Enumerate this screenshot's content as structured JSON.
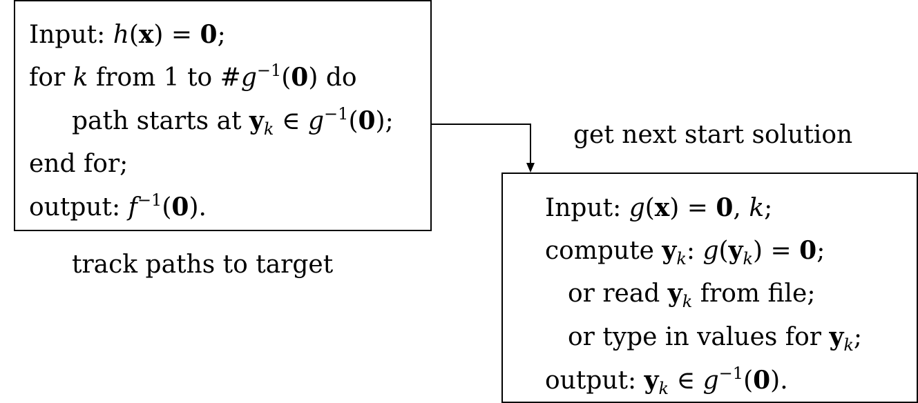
{
  "tracker": {
    "line1": {
      "pre": "Input: ",
      "h": "h",
      "x": "x",
      "eq": " = ",
      "zero": "0",
      "end": ";"
    },
    "line2": {
      "pre": "for ",
      "k": "k",
      "mid": " from 1 to #",
      "g": "g",
      "sup": "−1",
      "open": "(",
      "zero": "0",
      "close": ") do"
    },
    "line3": {
      "pre": "path starts at ",
      "y": "y",
      "k": "k",
      "in": " ∈ ",
      "g": "g",
      "sup": "−1",
      "open": "(",
      "zero": "0",
      "close": ");"
    },
    "line4": {
      "text": "end for;"
    },
    "line5": {
      "pre": "output: ",
      "f": "f",
      "sup": "−1",
      "open": "(",
      "zero": "0",
      "close": ")."
    }
  },
  "tracker_caption": "track paths to target",
  "arrow_caption": "get next start solution",
  "generator": {
    "line1": {
      "pre": "Input: ",
      "g": "g",
      "open": "(",
      "x": "x",
      "mid": ") = ",
      "zero": "0",
      "comma": ", ",
      "k": "k",
      "end": ";"
    },
    "line2": {
      "pre": "compute ",
      "y": "y",
      "k": "k",
      "colon": ": ",
      "g": "g",
      "open": "(",
      "y2": "y",
      "k2": "k",
      "mid": ") = ",
      "zero": "0",
      "end": ";"
    },
    "line3": {
      "pre": "or read ",
      "y": "y",
      "k": "k",
      "post": " from file;"
    },
    "line4": {
      "pre": "or type in values for ",
      "y": "y",
      "k": "k",
      "end": ";"
    },
    "line5": {
      "pre": "output: ",
      "y": "y",
      "k": "k",
      "in": " ∈ ",
      "g": "g",
      "sup": "−1",
      "open": "(",
      "zero": "0",
      "close": ")."
    }
  }
}
